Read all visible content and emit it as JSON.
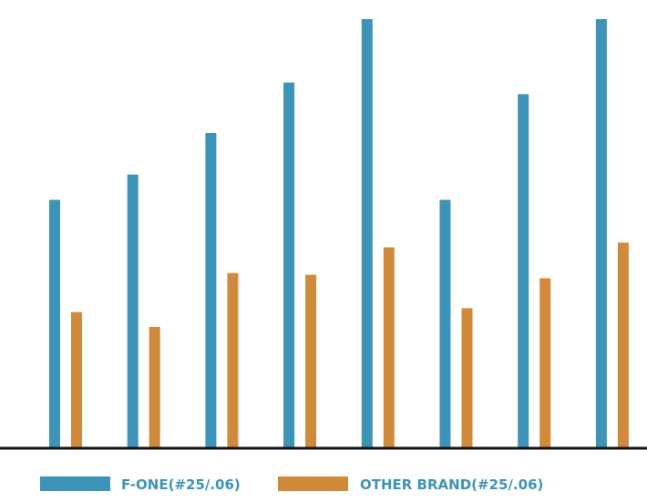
{
  "chart_data": {
    "type": "bar",
    "categories": [
      "",
      "",
      "",
      "",
      "",
      "",
      "",
      ""
    ],
    "series": [
      {
        "name": "F-ONE(#25/.06)",
        "color": "#3e93b8",
        "values": [
          57.8,
          63.7,
          73.4,
          85.2,
          100,
          57.8,
          82.5,
          100
        ]
      },
      {
        "name": "OTHER BRAND(#25/.06)",
        "color": "#d08a3c",
        "values": [
          31.6,
          28.1,
          40.7,
          40.3,
          46.7,
          32.5,
          39.5,
          47.8
        ]
      }
    ],
    "ylim": [
      0,
      100
    ],
    "grid": false,
    "legend": "bottom",
    "legend_text_color": "#3e93b8",
    "axis_color": "#111111"
  }
}
